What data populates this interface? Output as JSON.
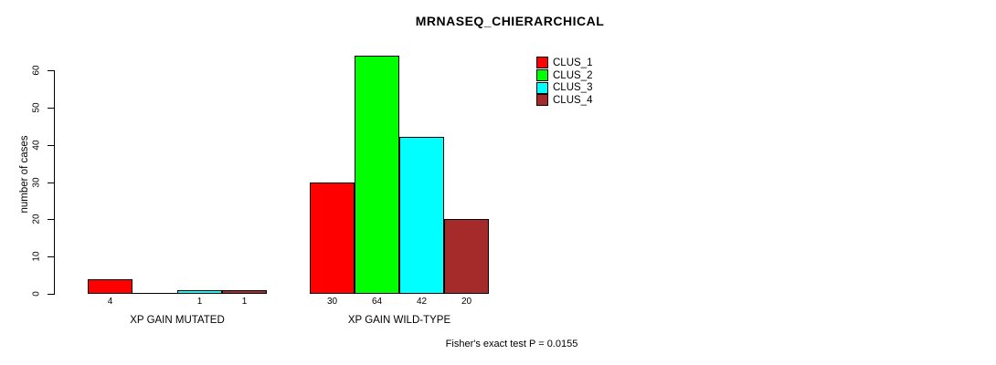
{
  "chart_data": {
    "type": "bar",
    "title": "MRNASEQ_CHIERARCHICAL",
    "xlabel": "",
    "ylabel": "number of cases",
    "ylim": [
      0,
      64
    ],
    "yticks": [
      0,
      10,
      20,
      30,
      40,
      50,
      60
    ],
    "grid": false,
    "legend_position": "top-right",
    "categories": [
      "XP GAIN MUTATED",
      "XP GAIN WILD-TYPE"
    ],
    "series": [
      {
        "name": "CLUS_1",
        "color": "#ff0000",
        "values": [
          4,
          30
        ]
      },
      {
        "name": "CLUS_2",
        "color": "#00ff00",
        "values": [
          0,
          64
        ]
      },
      {
        "name": "CLUS_3",
        "color": "#00ffff",
        "values": [
          1,
          42
        ]
      },
      {
        "name": "CLUS_4",
        "color": "#a52a2a",
        "values": [
          1,
          20
        ]
      }
    ],
    "value_labels": [
      [
        "4",
        "",
        "1",
        "1"
      ],
      [
        "30",
        "64",
        "42",
        "20"
      ]
    ],
    "annotation": "Fisher's exact test P = 0.0155"
  }
}
